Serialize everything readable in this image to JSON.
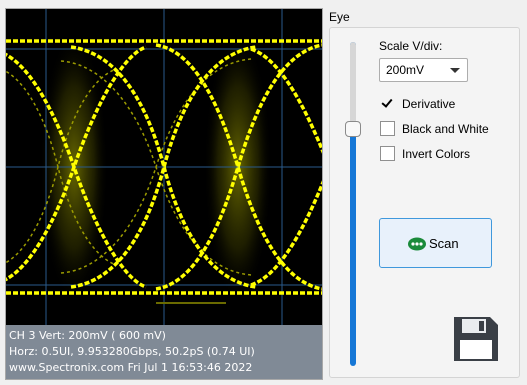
{
  "scope": {
    "line1": "CH 3    Vert: 200mV ( 600 mV)",
    "line2": "Horz: 0.5UI, 9.953280Gbps, 50.2pS (0.74 UI)",
    "line3": "www.Spectronix.com    Fri Jul 1 16:53:46 2022"
  },
  "panel": {
    "title": "Eye",
    "scale_label": "Scale V/div:",
    "scale_value": "200mV",
    "checkboxes": [
      {
        "label": "Derivative",
        "checked": true
      },
      {
        "label": "Black and White",
        "checked": false
      },
      {
        "label": "Invert Colors",
        "checked": false
      }
    ],
    "scan_label": "Scan",
    "slider_position": 0.27
  },
  "icons": {
    "scan": "scan-icon",
    "save": "floppy-disk-icon",
    "check": "checkmark-icon",
    "dropdown": "chevron-down-icon"
  },
  "colors": {
    "trace": "#ffff00",
    "grid": "#2a5a8c",
    "info_bar": "#808a96",
    "slider_fill": "#1677d6",
    "scan_icon": "#1a8a3a"
  }
}
